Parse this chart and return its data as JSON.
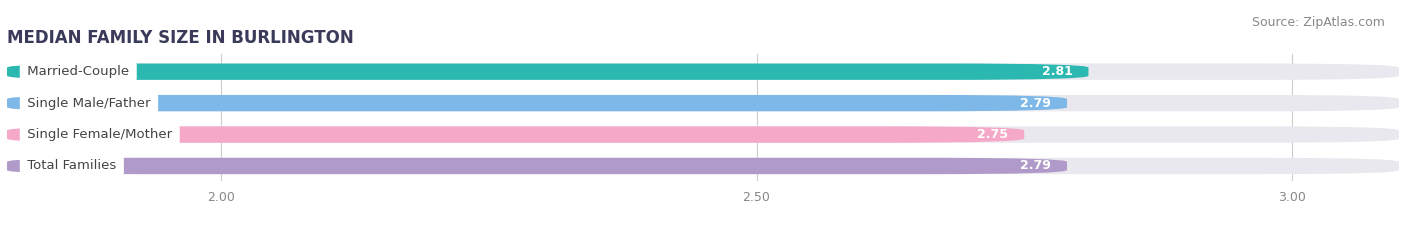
{
  "title": "MEDIAN FAMILY SIZE IN BURLINGTON",
  "source": "Source: ZipAtlas.com",
  "categories": [
    "Married-Couple",
    "Single Male/Father",
    "Single Female/Mother",
    "Total Families"
  ],
  "values": [
    2.81,
    2.79,
    2.75,
    2.79
  ],
  "bar_colors": [
    "#2ab8b0",
    "#7db8e8",
    "#f5a8c8",
    "#b09aca"
  ],
  "xmin": 1.8,
  "xmax": 3.1,
  "xticks": [
    2.0,
    2.5,
    3.0
  ],
  "xtick_labels": [
    "2.00",
    "2.50",
    "3.00"
  ],
  "bar_height": 0.52,
  "label_fontsize": 9.5,
  "value_fontsize": 9,
  "title_fontsize": 12,
  "source_fontsize": 9,
  "background_color": "#ffffff",
  "bar_bg_color": "#e8e8ee"
}
